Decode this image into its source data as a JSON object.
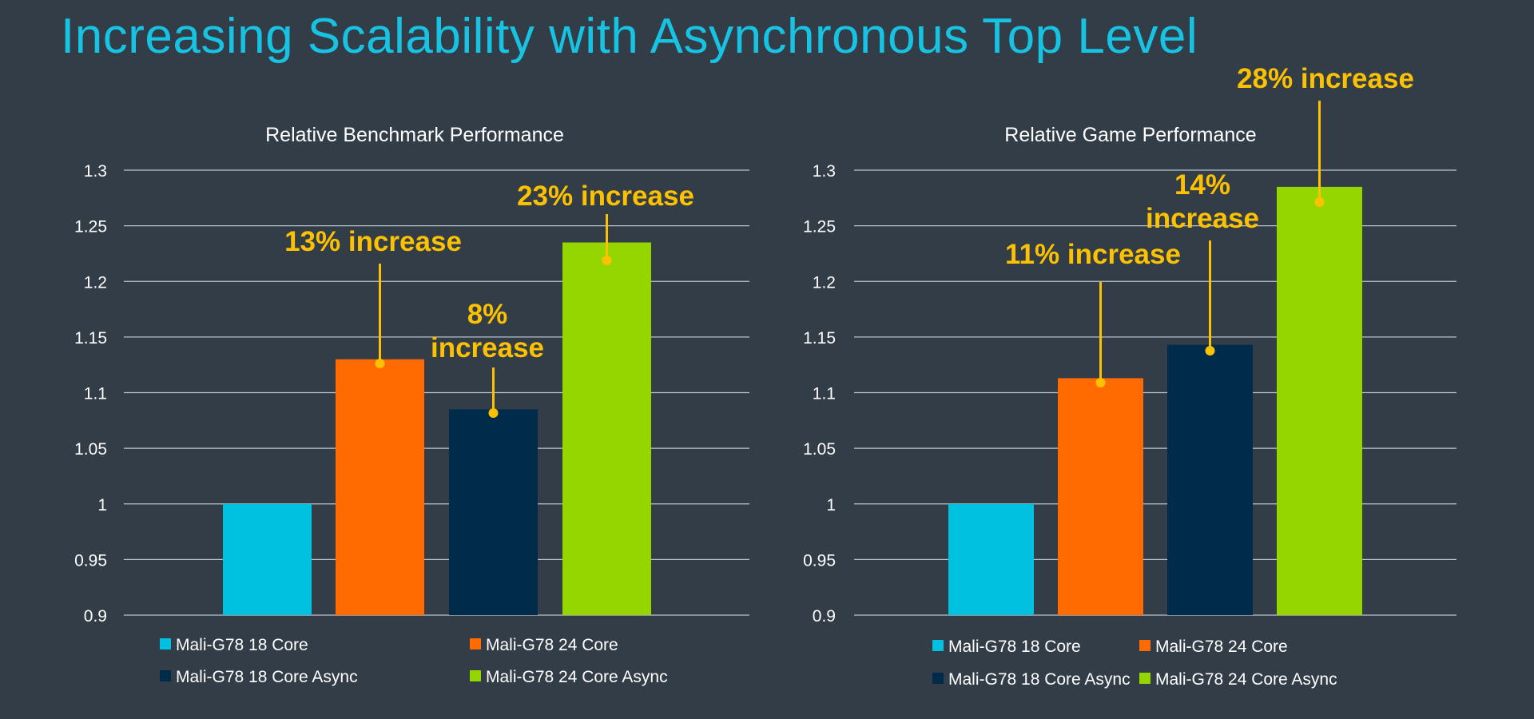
{
  "slide": {
    "title": "Increasing Scalability with Asynchronous Top Level"
  },
  "chart_data": [
    {
      "type": "bar",
      "title": "Relative Benchmark Performance",
      "categories": [
        "Mali-G78 18 Core",
        "Mali-G78 24 Core",
        "Mali-G78 18 Core Async",
        "Mali-G78 24 Core Async"
      ],
      "values": [
        1.0,
        1.13,
        1.085,
        1.235
      ],
      "colors": [
        "#00c1df",
        "#ff6b00",
        "#002b4a",
        "#95d600"
      ],
      "ylim": [
        0.9,
        1.3
      ],
      "yticks": [
        "0.9",
        "0.95",
        "1",
        "1.05",
        "1.1",
        "1.15",
        "1.2",
        "1.25",
        "1.3"
      ],
      "grid": true,
      "legend": "bottom",
      "annotations": [
        {
          "bar": 1,
          "lines": [
            "13% increase"
          ]
        },
        {
          "bar": 2,
          "lines": [
            "8%",
            "increase"
          ]
        },
        {
          "bar": 3,
          "lines": [
            "23% increase"
          ]
        }
      ]
    },
    {
      "type": "bar",
      "title": "Relative Game Performance",
      "categories": [
        "Mali-G78 18 Core",
        "Mali-G78 24 Core",
        "Mali-G78 18 Core Async",
        "Mali-G78 24 Core Async"
      ],
      "values": [
        1.0,
        1.113,
        1.143,
        1.285
      ],
      "colors": [
        "#00c1df",
        "#ff6b00",
        "#002b4a",
        "#95d600"
      ],
      "ylim": [
        0.9,
        1.3
      ],
      "yticks": [
        "0.9",
        "0.95",
        "1",
        "1.05",
        "1.1",
        "1.15",
        "1.2",
        "1.25",
        "1.3"
      ],
      "grid": true,
      "legend": "bottom",
      "annotations": [
        {
          "bar": 1,
          "lines": [
            "11% increase"
          ]
        },
        {
          "bar": 2,
          "lines": [
            "14%",
            "increase"
          ]
        },
        {
          "bar": 3,
          "lines": [
            "28% increase"
          ]
        }
      ]
    }
  ],
  "style": {
    "annotation_color": "#fcc100",
    "grid_color": "#bfc4ca",
    "text_color": "#ffffff",
    "accent_color": "#17c3e3"
  }
}
